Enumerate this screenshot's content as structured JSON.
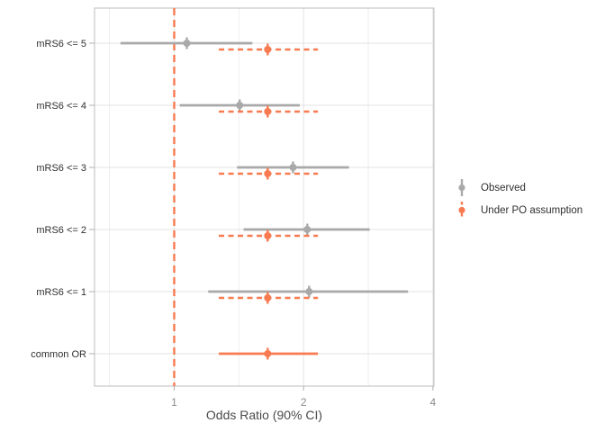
{
  "chart_data": {
    "type": "forest-pointrange",
    "title": "",
    "xlabel": "Odds Ratio (90% CI)",
    "x_scale": "log2",
    "x_tick_labels": [
      "1",
      "2",
      "4"
    ],
    "x_tick_values": [
      1,
      2,
      4
    ],
    "x_minor_values": [
      0.7071,
      1.4142,
      2.8284
    ],
    "x_domain": [
      0.65,
      4.03
    ],
    "grid": true,
    "legend_position": "right",
    "reference_line": {
      "x": 1,
      "style": "dashed",
      "color": "#f87a50"
    },
    "categories": [
      "mRS6 <= 5",
      "mRS6 <= 4",
      "mRS6 <= 3",
      "mRS6 <= 2",
      "mRS6 <= 1",
      "common OR"
    ],
    "series": [
      {
        "name": "Observed",
        "color": "#a9a9a9",
        "style": "solid",
        "values": [
          {
            "category": "mRS6 <= 5",
            "or": 1.07,
            "lo": 0.75,
            "hi": 1.52,
            "line": "solid"
          },
          {
            "category": "mRS6 <= 4",
            "or": 1.42,
            "lo": 1.03,
            "hi": 1.96,
            "line": "solid"
          },
          {
            "category": "mRS6 <= 3",
            "or": 1.89,
            "lo": 1.4,
            "hi": 2.55,
            "line": "solid"
          },
          {
            "category": "mRS6 <= 2",
            "or": 2.04,
            "lo": 1.45,
            "hi": 2.85,
            "line": "solid"
          },
          {
            "category": "mRS6 <= 1",
            "or": 2.06,
            "lo": 1.2,
            "hi": 3.5,
            "line": "solid"
          }
        ]
      },
      {
        "name": "Under PO assumption",
        "color": "#f87a50",
        "style": "dashed",
        "values": [
          {
            "category": "mRS6 <= 5",
            "or": 1.65,
            "lo": 1.27,
            "hi": 2.16,
            "line": "dashed"
          },
          {
            "category": "mRS6 <= 4",
            "or": 1.65,
            "lo": 1.27,
            "hi": 2.16,
            "line": "dashed"
          },
          {
            "category": "mRS6 <= 3",
            "or": 1.65,
            "lo": 1.27,
            "hi": 2.16,
            "line": "dashed"
          },
          {
            "category": "mRS6 <= 2",
            "or": 1.65,
            "lo": 1.27,
            "hi": 2.16,
            "line": "dashed"
          },
          {
            "category": "mRS6 <= 1",
            "or": 1.65,
            "lo": 1.27,
            "hi": 2.16,
            "line": "dashed"
          },
          {
            "category": "common OR",
            "or": 1.65,
            "lo": 1.27,
            "hi": 2.16,
            "line": "solid"
          }
        ]
      }
    ],
    "theme": {
      "grid_major": "#e3e3e3",
      "grid_minor": "#efefef",
      "panel_border": "#bdbdbd",
      "tick_mark": "#b0b0b0",
      "axis_text_x": "#8a8a8a",
      "axis_text_y": "#303030",
      "axis_title": "#4a4a4a",
      "background": "#ffffff"
    }
  }
}
